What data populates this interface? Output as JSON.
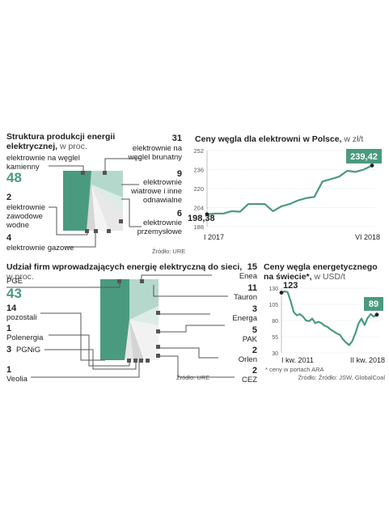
{
  "colors": {
    "accent": "#4a9a80",
    "light": "#b5d8cc",
    "grey": "#e6e6e6",
    "white": "#f4f4f4"
  },
  "chart_data": [
    {
      "type": "pie",
      "title": "Struktura produkcji energii elektrycznej,",
      "unit": "w proc.",
      "source": "Źródło: URE",
      "slices": [
        {
          "value": "48",
          "label": "elektrownie na węglel kamienny"
        },
        {
          "value": "31",
          "label": "elektrownie na węglel brunatny"
        },
        {
          "value": "9",
          "label": "elektrownie wiatrowe i inne odnawialne"
        },
        {
          "value": "6",
          "label": "elektrownie przemysłowe"
        },
        {
          "value": "4",
          "label": "elektrownie gazowe"
        },
        {
          "value": "2",
          "label": "elektrownie zawodowe wodne"
        }
      ]
    },
    {
      "type": "line",
      "title": "Ceny węgla dla elektrowni w Polsce,",
      "unit": "w zł/t",
      "x_start_label": "I 2017",
      "x_end_label": "VI 2018",
      "y_ticks": [
        "252",
        "236",
        "220",
        "204",
        "188"
      ],
      "ylim": [
        188,
        252
      ],
      "first_label": "198,38",
      "last_label": "239,42",
      "values": [
        198.38,
        199,
        199,
        201,
        200.5,
        207,
        207,
        207,
        201,
        205,
        207,
        210,
        212,
        213,
        226,
        228,
        230,
        235,
        234,
        236,
        239.42
      ]
    },
    {
      "type": "pie",
      "title": "Udział firm wprowadzających energię elektryczną do sieci,",
      "unit": "w proc.",
      "source": "Źródło: URE",
      "slices": [
        {
          "value": "43",
          "label": "PGE"
        },
        {
          "value": "15",
          "label": "Enea"
        },
        {
          "value": "11",
          "label": "Tauron"
        },
        {
          "value": "3",
          "label": "Energa"
        },
        {
          "value": "5",
          "label": "PAK"
        },
        {
          "value": "2",
          "label": "Orlen"
        },
        {
          "value": "2",
          "label": "CEZ"
        },
        {
          "value": "1",
          "label": "Veolia"
        },
        {
          "value": "3",
          "label": "PGNiG"
        },
        {
          "value": "1",
          "label": "Polenergia"
        },
        {
          "value": "14",
          "label": "pozostali"
        }
      ]
    },
    {
      "type": "line",
      "title_line1": "Ceny węgla energetycznego",
      "title_line2": "na świecie*,",
      "unit": "w USD/t",
      "x_start_label": "I kw. 2011",
      "x_end_label": "II kw. 2018",
      "y_ticks": [
        "130",
        "105",
        "80",
        "55",
        "30"
      ],
      "ylim": [
        30,
        130
      ],
      "first_label": "123",
      "last_label": "89",
      "values": [
        123,
        125,
        124,
        110,
        93,
        88,
        90,
        86,
        80,
        79,
        83,
        76,
        78,
        76,
        72,
        70,
        66,
        63,
        60,
        58,
        51,
        46,
        42,
        48,
        60,
        75,
        83,
        73,
        84,
        90,
        86,
        89
      ],
      "footnote": "* ceny w portach ARA",
      "source": "Źródło: Źródło: JSW, GlobalCoal"
    }
  ]
}
